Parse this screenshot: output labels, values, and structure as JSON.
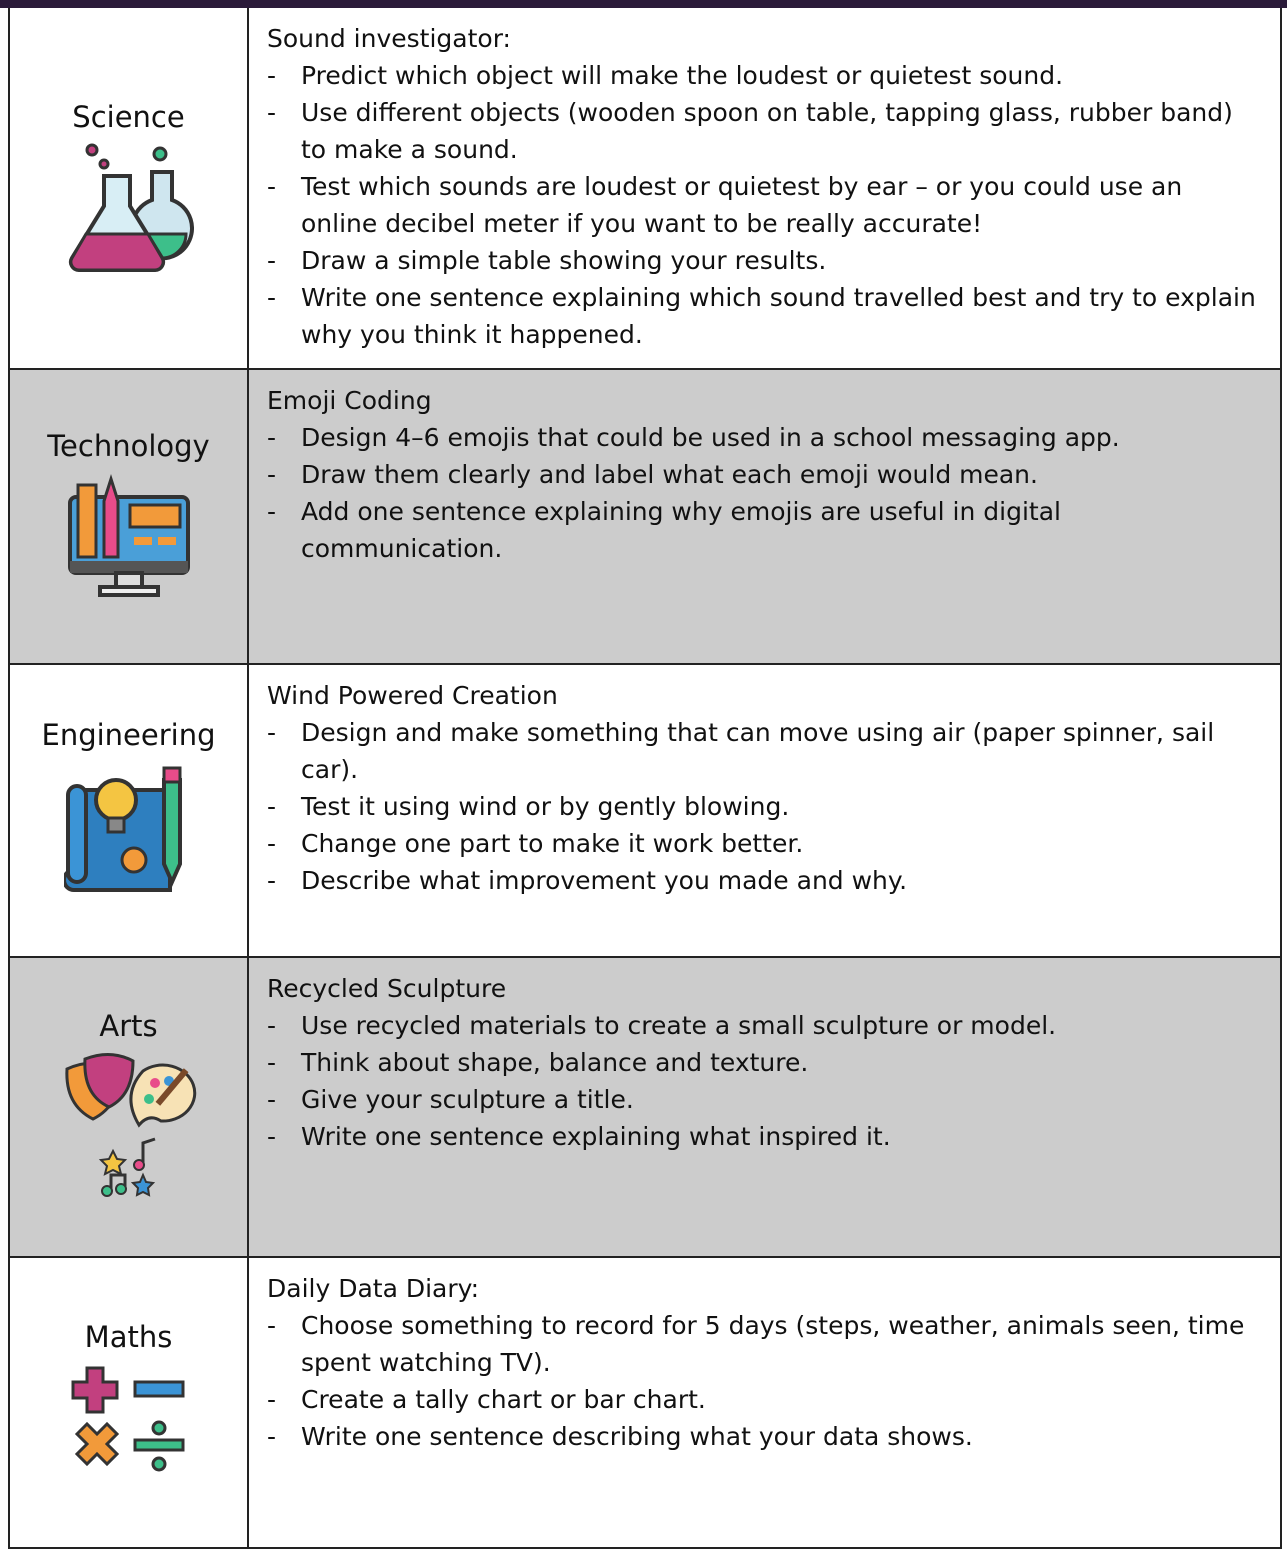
{
  "bullet": "-",
  "rows": [
    {
      "subject": "Science",
      "title": "Sound investigator:",
      "items": [
        "Predict which object will make the loudest or quietest sound.",
        "Use different objects (wooden spoon on table, tapping glass, rubber band) to make a sound.",
        "Test which sounds are loudest or quietest by ear – or you could use an online decibel meter if you want to be really accurate!",
        "Draw a simple table showing your results.",
        "Write one sentence explaining which sound travelled best and try to explain why you think it happened."
      ]
    },
    {
      "subject": "Technology",
      "title": "Emoji Coding",
      "items": [
        "Design 4–6 emojis that could be used in a school messaging app.",
        "Draw them clearly and label what each emoji would mean.",
        "Add one sentence explaining why emojis are useful in digital communication."
      ]
    },
    {
      "subject": "Engineering",
      "title": "Wind Powered Creation",
      "items": [
        "Design and make something that can move using air (paper spinner, sail car).",
        "Test it using wind or by gently blowing.",
        "Change one part to make it work better.",
        "Describe what improvement you made and why."
      ]
    },
    {
      "subject": "Arts",
      "title": "Recycled Sculpture",
      "items": [
        "Use recycled materials to create a small sculpture or model.",
        "Think about shape, balance and texture.",
        "Give your sculpture a title.",
        "Write one sentence explaining what inspired it."
      ]
    },
    {
      "subject": "Maths",
      "title": "Daily Data Diary:",
      "items": [
        "Choose something to record for 5 days (steps, weather, animals seen, time spent watching TV).",
        "Create a tally chart or bar chart.",
        "Write one sentence describing what your data shows."
      ]
    }
  ]
}
